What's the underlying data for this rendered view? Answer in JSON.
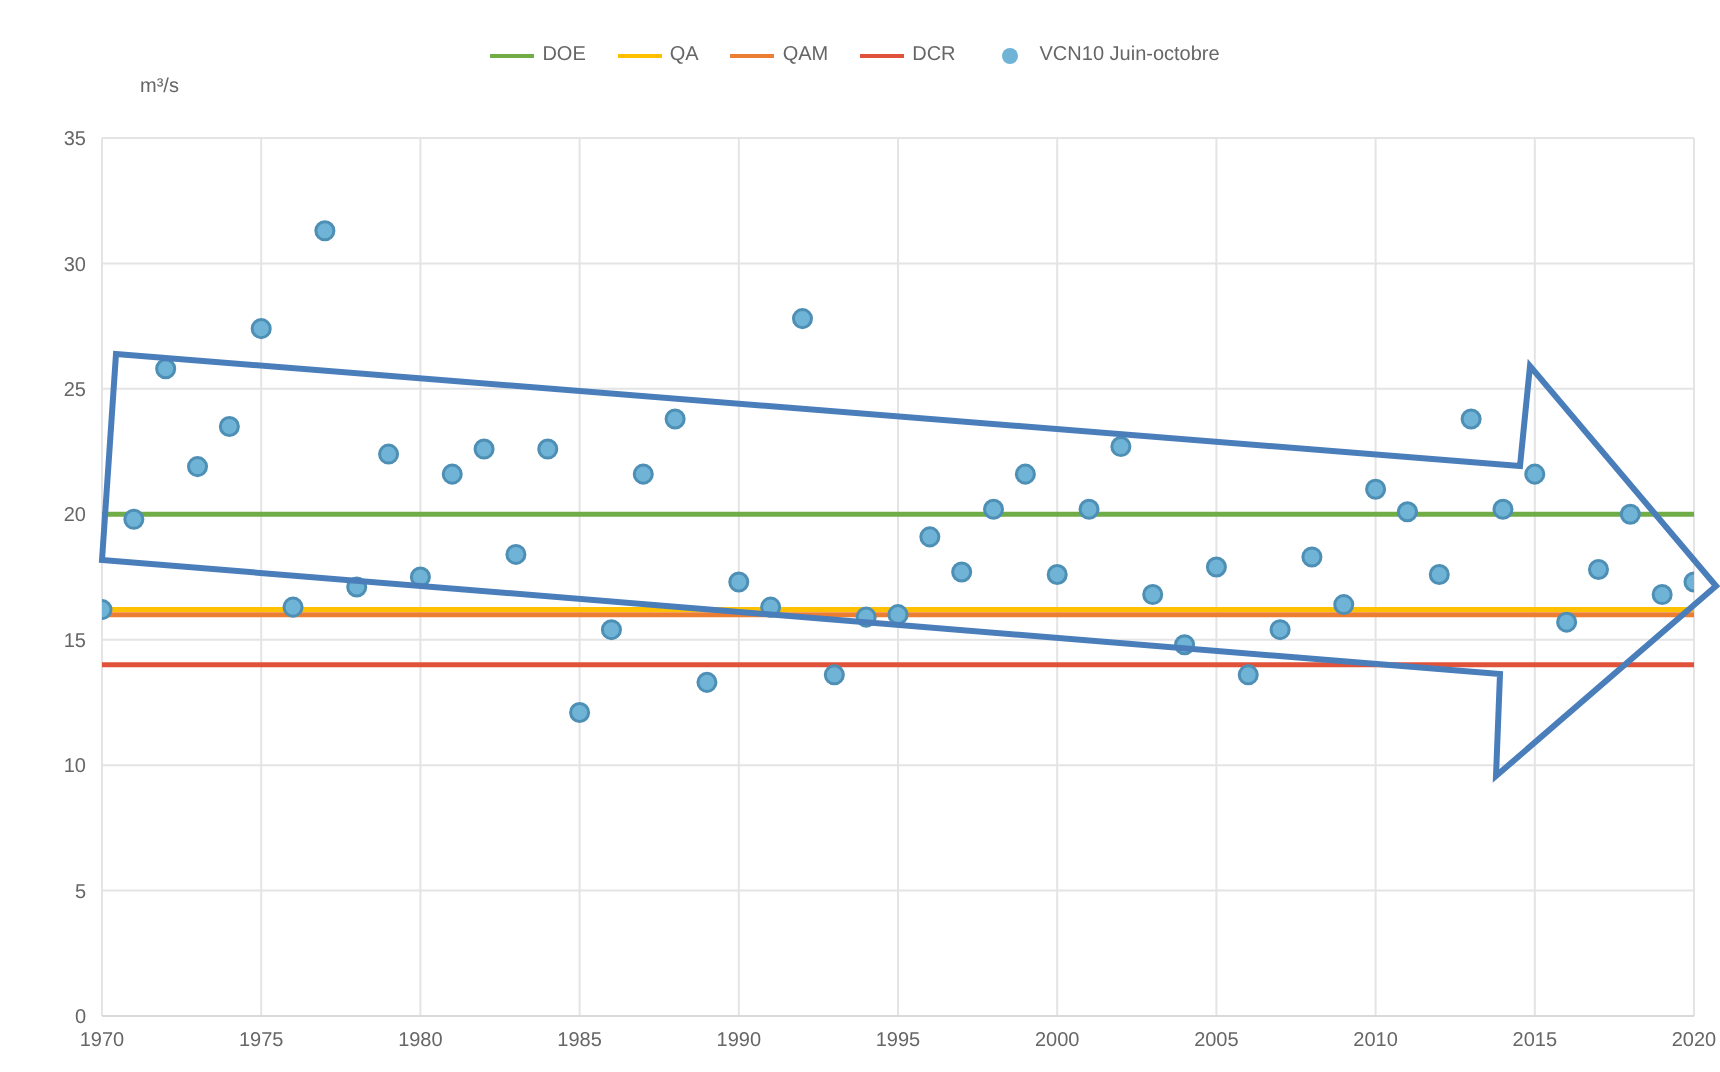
{
  "chart_data": {
    "type": "scatter",
    "ylabel": "m³/s",
    "xlim": [
      1970,
      2020
    ],
    "xticks": [
      1970,
      1975,
      1980,
      1985,
      1990,
      1995,
      2000,
      2005,
      2010,
      2015,
      2020
    ],
    "ylim": [
      0,
      35
    ],
    "yticks": [
      0,
      5,
      10,
      15,
      20,
      25,
      30,
      35
    ],
    "grid": true,
    "legend": "top",
    "series": [
      {
        "name": "DOE",
        "type": "line",
        "color": "#70ad47",
        "marker": "none",
        "x": [
          1970,
          2020
        ],
        "values": [
          20,
          20
        ]
      },
      {
        "name": "QA",
        "type": "line",
        "color": "#ffc000",
        "marker": "none",
        "x": [
          1970,
          2020
        ],
        "values": [
          16.2,
          16.2
        ]
      },
      {
        "name": "QAM",
        "type": "line",
        "color": "#ed7d31",
        "marker": "none",
        "x": [
          1970,
          2020
        ],
        "values": [
          16,
          16
        ]
      },
      {
        "name": "DCR",
        "type": "line",
        "color": "#e0523a",
        "marker": "none",
        "x": [
          1970,
          2020
        ],
        "values": [
          14,
          14
        ]
      },
      {
        "name": "VCN10 Juin-octobre",
        "color": "#6fb3d6",
        "marker": "circle",
        "x": [
          1970,
          1971,
          1972,
          1973,
          1974,
          1975,
          1976,
          1977,
          1978,
          1979,
          1980,
          1981,
          1982,
          1983,
          1984,
          1985,
          1986,
          1987,
          1988,
          1989,
          1990,
          1991,
          1992,
          1993,
          1994,
          1995,
          1996,
          1997,
          1998,
          1999,
          2000,
          2001,
          2002,
          2003,
          2004,
          2005,
          2006,
          2007,
          2008,
          2009,
          2010,
          2011,
          2012,
          2013,
          2014,
          2015,
          2016,
          2017,
          2018,
          2019,
          2020
        ],
        "values": [
          16.2,
          19.8,
          25.8,
          21.9,
          23.5,
          27.4,
          16.3,
          31.3,
          17.1,
          22.4,
          17.5,
          21.6,
          22.6,
          18.4,
          22.6,
          12.1,
          15.4,
          21.6,
          23.8,
          13.3,
          17.3,
          16.3,
          27.8,
          13.6,
          15.9,
          16.0,
          19.1,
          17.7,
          20.2,
          21.6,
          17.6,
          20.2,
          22.7,
          16.8,
          14.8,
          17.9,
          13.6,
          15.4,
          18.3,
          16.4,
          21.0,
          20.1,
          17.6,
          23.8,
          20.2,
          21.6,
          15.7,
          17.8,
          20.0,
          16.8,
          17.3
        ]
      }
    ]
  }
}
